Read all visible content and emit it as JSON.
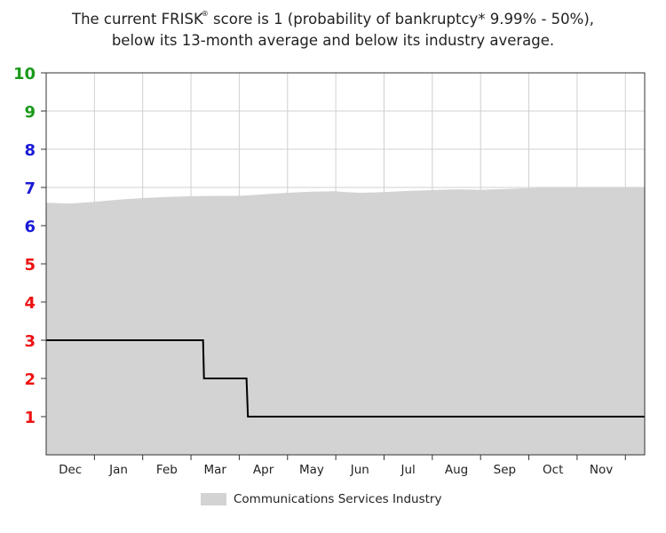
{
  "header": {
    "line1_prefix": "The current FRISK",
    "registered_mark": "®",
    "line1_suffix": " score is 1 (probability of bankruptcy* 9.99% - 50%),",
    "line2": "below its 13-month average and below its industry average."
  },
  "colors": {
    "industry_fill": "#d3d3d3",
    "score_line": "#000000",
    "grid": "#d0d0d0",
    "frame": "#333333",
    "tick_green": "#1a9a1a",
    "tick_blue": "#1a1ad8",
    "tick_red": "#ee1111"
  },
  "chart_data": {
    "type": "area",
    "ylim": [
      0,
      10
    ],
    "y_ticks": [
      {
        "value": 10,
        "label": "10",
        "color": "green"
      },
      {
        "value": 9,
        "label": "9",
        "color": "green"
      },
      {
        "value": 8,
        "label": "8",
        "color": "blue"
      },
      {
        "value": 7,
        "label": "7",
        "color": "blue"
      },
      {
        "value": 6,
        "label": "6",
        "color": "blue"
      },
      {
        "value": 5,
        "label": "5",
        "color": "red"
      },
      {
        "value": 4,
        "label": "4",
        "color": "red"
      },
      {
        "value": 3,
        "label": "3",
        "color": "red"
      },
      {
        "value": 2,
        "label": "2",
        "color": "red"
      },
      {
        "value": 1,
        "label": "1",
        "color": "red"
      }
    ],
    "xlim": [
      0,
      12.4
    ],
    "x_ticks": [
      {
        "pos": 0.5,
        "label": "Dec"
      },
      {
        "pos": 1.5,
        "label": "Jan"
      },
      {
        "pos": 2.5,
        "label": "Feb"
      },
      {
        "pos": 3.5,
        "label": "Mar"
      },
      {
        "pos": 4.5,
        "label": "Apr"
      },
      {
        "pos": 5.5,
        "label": "May"
      },
      {
        "pos": 6.5,
        "label": "Jun"
      },
      {
        "pos": 7.5,
        "label": "Jul"
      },
      {
        "pos": 8.5,
        "label": "Aug"
      },
      {
        "pos": 9.5,
        "label": "Sep"
      },
      {
        "pos": 10.5,
        "label": "Oct"
      },
      {
        "pos": 11.5,
        "label": "Nov"
      }
    ],
    "series": [
      {
        "name": "Communications Services Industry",
        "kind": "area",
        "points": [
          [
            0,
            6.6
          ],
          [
            0.5,
            6.58
          ],
          [
            1,
            6.62
          ],
          [
            1.5,
            6.68
          ],
          [
            2,
            6.72
          ],
          [
            2.5,
            6.75
          ],
          [
            3,
            6.77
          ],
          [
            3.5,
            6.78
          ],
          [
            4,
            6.78
          ],
          [
            4.5,
            6.82
          ],
          [
            5,
            6.86
          ],
          [
            5.5,
            6.89
          ],
          [
            6,
            6.9
          ],
          [
            6.2,
            6.88
          ],
          [
            6.5,
            6.86
          ],
          [
            7,
            6.88
          ],
          [
            7.5,
            6.91
          ],
          [
            8,
            6.93
          ],
          [
            8.5,
            6.95
          ],
          [
            9,
            6.94
          ],
          [
            9.5,
            6.96
          ],
          [
            10,
            6.98
          ],
          [
            10.5,
            7.0
          ],
          [
            11,
            6.99
          ],
          [
            11.5,
            7.0
          ],
          [
            12.4,
            7.01
          ]
        ]
      },
      {
        "kind": "step",
        "points": [
          [
            0,
            3
          ],
          [
            3.25,
            3
          ],
          [
            3.27,
            2
          ],
          [
            4.15,
            2
          ],
          [
            4.18,
            1
          ],
          [
            12.4,
            1
          ]
        ]
      }
    ],
    "grid": true,
    "legend": "bottom-center",
    "legend_label": "Communications Services Industry"
  }
}
